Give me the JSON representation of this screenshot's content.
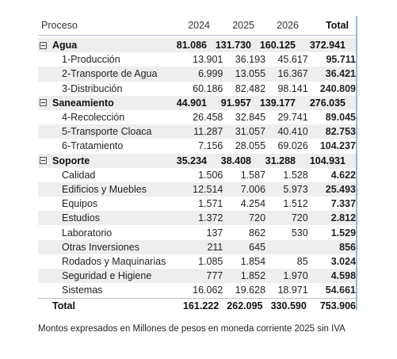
{
  "header": {
    "label": "Proceso",
    "years": [
      "2024",
      "2025",
      "2026"
    ],
    "total": "Total"
  },
  "rows": [
    {
      "type": "group",
      "label": "Agua",
      "values": [
        "81.086",
        "131.730",
        "160.125"
      ],
      "total": "372.941"
    },
    {
      "type": "child",
      "label": "1-Producción",
      "values": [
        "13.901",
        "36.193",
        "45.617"
      ],
      "total": "95.711"
    },
    {
      "type": "child",
      "label": "2-Transporte de Agua",
      "values": [
        "6.999",
        "13.055",
        "16.367"
      ],
      "total": "36.421"
    },
    {
      "type": "child",
      "label": "3-Distribución",
      "values": [
        "60.186",
        "82.482",
        "98.141"
      ],
      "total": "240.809"
    },
    {
      "type": "group",
      "label": "Saneamiento",
      "values": [
        "44.901",
        "91.957",
        "139.177"
      ],
      "total": "276.035"
    },
    {
      "type": "child",
      "label": "4-Recolección",
      "values": [
        "26.458",
        "32.845",
        "29.741"
      ],
      "total": "89.045"
    },
    {
      "type": "child",
      "label": "5-Transporte Cloaca",
      "values": [
        "11.287",
        "31.057",
        "40.410"
      ],
      "total": "82.753"
    },
    {
      "type": "child",
      "label": "6-Tratamiento",
      "values": [
        "7.156",
        "28.055",
        "69.026"
      ],
      "total": "104.237"
    },
    {
      "type": "group",
      "label": "Soporte",
      "values": [
        "35.234",
        "38.408",
        "31.288"
      ],
      "total": "104.931"
    },
    {
      "type": "child",
      "label": "Calidad",
      "values": [
        "1.506",
        "1.587",
        "1.528"
      ],
      "total": "4.622"
    },
    {
      "type": "child",
      "label": "Edificios y Muebles",
      "values": [
        "12.514",
        "7.006",
        "5.973"
      ],
      "total": "25.493"
    },
    {
      "type": "child",
      "label": "Equipos",
      "values": [
        "1.571",
        "4.254",
        "1.512"
      ],
      "total": "7.337"
    },
    {
      "type": "child",
      "label": "Estudios",
      "values": [
        "1.372",
        "720",
        "720"
      ],
      "total": "2.812"
    },
    {
      "type": "child",
      "label": "Laboratorio",
      "values": [
        "137",
        "862",
        "530"
      ],
      "total": "1.529"
    },
    {
      "type": "child",
      "label": "Otras Inversiones",
      "values": [
        "211",
        "645",
        ""
      ],
      "total": "856"
    },
    {
      "type": "child",
      "label": "Rodados y Maquinarias",
      "values": [
        "1.085",
        "1.854",
        "85"
      ],
      "total": "3.024"
    },
    {
      "type": "child",
      "label": "Seguridad e Higiene",
      "values": [
        "777",
        "1.852",
        "1.970"
      ],
      "total": "4.598"
    },
    {
      "type": "child",
      "label": "Sistemas",
      "values": [
        "16.062",
        "19.628",
        "18.971"
      ],
      "total": "54.661"
    }
  ],
  "grand_total": {
    "label": "Total",
    "values": [
      "161.222",
      "262.095",
      "330.590"
    ],
    "total": "753.906"
  },
  "footnote": "Montos expresados en Millones de pesos en moneda corriente 2025 sin IVA",
  "colors": {
    "zebra": "#eeeeee",
    "divider": "#b7c4d6",
    "scroll_edge": "#9ab7d6"
  },
  "icons": {
    "group_toggle": "collapse-minus-icon"
  }
}
